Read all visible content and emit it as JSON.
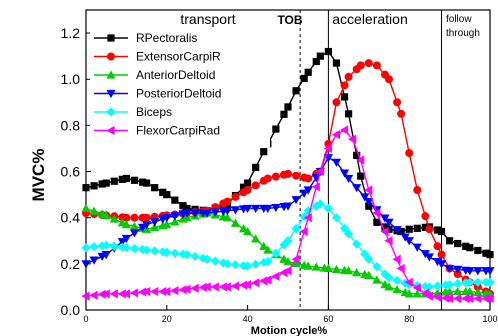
{
  "chart_data": {
    "type": "line",
    "xlabel": "Motion cycle%",
    "ylabel": "MVC%",
    "xlim": [
      0,
      100
    ],
    "ylim": [
      0,
      1.3
    ],
    "x_ticks": [
      "0",
      "20",
      "40",
      "60",
      "80",
      "100"
    ],
    "y_ticks": [
      "0.0",
      "0.2",
      "0.4",
      "0.6",
      "0.8",
      "1.0",
      "1.2"
    ],
    "phases": [
      {
        "label": "transport",
        "at": 0
      },
      {
        "label": "TOB",
        "at": 53
      },
      {
        "label": "acceleration",
        "at": 60
      },
      {
        "label": "follow",
        "at": 88
      },
      {
        "label": "through",
        "at": 88
      }
    ],
    "phase_lines": [
      {
        "x": 53,
        "style": "dashed"
      },
      {
        "x": 60,
        "style": "solid"
      },
      {
        "x": 88,
        "style": "solid"
      }
    ],
    "legend_position": "top-left",
    "series": [
      {
        "name": "RPectoralis",
        "color": "#000000",
        "marker": "square",
        "x": [
          0,
          5,
          10,
          15,
          20,
          25,
          30,
          35,
          40,
          45,
          50,
          52,
          55,
          58,
          60,
          62,
          65,
          68,
          70,
          72,
          75,
          78,
          80,
          85,
          88,
          90,
          95,
          100
        ],
        "y": [
          0.53,
          0.55,
          0.57,
          0.55,
          0.5,
          0.44,
          0.43,
          0.46,
          0.55,
          0.72,
          0.88,
          0.95,
          1.03,
          1.1,
          1.12,
          1.07,
          0.85,
          0.58,
          0.45,
          0.38,
          0.35,
          0.34,
          0.35,
          0.36,
          0.34,
          0.3,
          0.27,
          0.24
        ]
      },
      {
        "name": "ExtensorCarpiR",
        "color": "#ff0000",
        "marker": "circle",
        "x": [
          0,
          5,
          10,
          15,
          20,
          25,
          30,
          35,
          40,
          45,
          50,
          55,
          58,
          60,
          62,
          65,
          68,
          70,
          72,
          75,
          78,
          80,
          82,
          85,
          88,
          90,
          95,
          100
        ],
        "y": [
          0.42,
          0.41,
          0.4,
          0.4,
          0.41,
          0.42,
          0.43,
          0.47,
          0.52,
          0.57,
          0.59,
          0.57,
          0.6,
          0.72,
          0.9,
          1.01,
          1.06,
          1.07,
          1.06,
          1.0,
          0.85,
          0.68,
          0.52,
          0.35,
          0.24,
          0.18,
          0.12,
          0.07
        ]
      },
      {
        "name": "AnteriorDeltoid",
        "color": "#00cc00",
        "marker": "triangle-up",
        "x": [
          0,
          5,
          10,
          15,
          20,
          25,
          30,
          35,
          40,
          45,
          50,
          55,
          60,
          65,
          70,
          75,
          80,
          85,
          90,
          95,
          100
        ],
        "y": [
          0.44,
          0.41,
          0.37,
          0.35,
          0.37,
          0.4,
          0.42,
          0.4,
          0.34,
          0.26,
          0.21,
          0.19,
          0.18,
          0.17,
          0.15,
          0.1,
          0.07,
          0.07,
          0.08,
          0.08,
          0.07
        ]
      },
      {
        "name": "PosteriorDeltoid",
        "color": "#0000ff",
        "marker": "triangle-down",
        "x": [
          0,
          5,
          10,
          15,
          20,
          25,
          30,
          35,
          40,
          45,
          50,
          55,
          58,
          60,
          62,
          65,
          70,
          75,
          80,
          85,
          88,
          90,
          95,
          100
        ],
        "y": [
          0.2,
          0.24,
          0.31,
          0.37,
          0.4,
          0.42,
          0.42,
          0.43,
          0.44,
          0.44,
          0.45,
          0.52,
          0.6,
          0.66,
          0.64,
          0.57,
          0.47,
          0.38,
          0.3,
          0.23,
          0.2,
          0.18,
          0.17,
          0.17
        ]
      },
      {
        "name": "Biceps",
        "color": "#00ffff",
        "marker": "diamond",
        "x": [
          0,
          5,
          10,
          15,
          20,
          25,
          30,
          35,
          40,
          45,
          50,
          55,
          58,
          60,
          62,
          65,
          70,
          75,
          80,
          85,
          90,
          95,
          100
        ],
        "y": [
          0.27,
          0.28,
          0.27,
          0.26,
          0.25,
          0.24,
          0.22,
          0.2,
          0.19,
          0.21,
          0.3,
          0.43,
          0.46,
          0.44,
          0.4,
          0.33,
          0.22,
          0.14,
          0.11,
          0.1,
          0.11,
          0.12,
          0.12
        ]
      },
      {
        "name": "FlexorCarpiRad",
        "color": "#ff00ff",
        "marker": "triangle-left",
        "x": [
          0,
          5,
          10,
          15,
          20,
          25,
          30,
          35,
          40,
          45,
          50,
          52,
          55,
          58,
          60,
          62,
          64,
          66,
          68,
          70,
          72,
          75,
          78,
          80,
          85,
          90,
          95,
          100
        ],
        "y": [
          0.06,
          0.07,
          0.07,
          0.08,
          0.08,
          0.09,
          0.1,
          0.1,
          0.11,
          0.13,
          0.17,
          0.22,
          0.4,
          0.6,
          0.7,
          0.76,
          0.78,
          0.74,
          0.65,
          0.52,
          0.42,
          0.3,
          0.18,
          0.12,
          0.06,
          0.05,
          0.05,
          0.05
        ]
      }
    ]
  }
}
